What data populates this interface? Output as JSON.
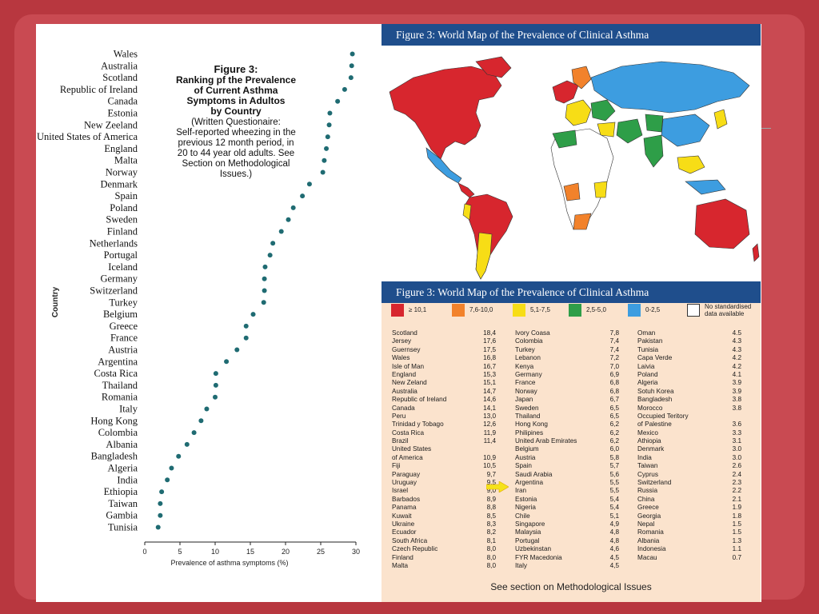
{
  "colors": {
    "background": "#b8373f",
    "dot": "#1f6b72",
    "header_bg": "#1f4e8c",
    "table_bg": "#fbe3cd",
    "arrow": "#f5e21a"
  },
  "chart_data": {
    "type": "scatter",
    "title": "Figure 3:",
    "title_lines": [
      "Ranking pf the Prevalence",
      "of Current Asthma",
      "Symptoms in Adultos",
      "by Country"
    ],
    "note_lines": [
      "(Written Questionaire:",
      "Self-reported wheezing in the",
      "previous 12 month period, in",
      "20 to 44 year old adults. See",
      "Section on Methodological",
      "Issues.)"
    ],
    "xlabel": "Prevalence of asthma symptoms (%)",
    "ylabel": "Country",
    "xlim": [
      0,
      30
    ],
    "xticks": [
      "0",
      "5",
      "10",
      "15",
      "20",
      "25",
      "30"
    ],
    "countries": [
      "Wales",
      "Australia",
      "Scotland",
      "Republic of Ireland",
      "Canada",
      "Estonia",
      "New Zeeland",
      "United States of America",
      "England",
      "Malta",
      "Norway",
      "Denmark",
      "Spain",
      "Poland",
      "Sweden",
      "Finland",
      "Netherlands",
      "Portugal",
      "Iceland",
      "Germany",
      "Switzerland",
      "Turkey",
      "Belgium",
      "Greece",
      "France",
      "Austria",
      "Argentina",
      "Costa Rica",
      "Thailand",
      "Romania",
      "Italy",
      "Hong Kong",
      "Colombia",
      "Albania",
      "Bangladesh",
      "Algeria",
      "India",
      "Ethiopia",
      "Taiwan",
      "Gambia",
      "Tunisia"
    ],
    "values": [
      29.5,
      29.4,
      29.3,
      28.4,
      27.4,
      26.3,
      26.2,
      26.0,
      25.8,
      25.5,
      25.3,
      23.4,
      22.4,
      21.1,
      20.4,
      19.4,
      18.2,
      17.8,
      17.1,
      17.0,
      17.0,
      16.9,
      15.4,
      14.4,
      14.4,
      13.1,
      11.6,
      10.1,
      10.1,
      10.0,
      8.8,
      8.0,
      7.0,
      6.0,
      4.8,
      3.8,
      3.2,
      2.4,
      2.2,
      2.2,
      1.9
    ]
  },
  "map": {
    "header": "Figure 3: World Map of the Prevalence of Clinical Asthma"
  },
  "table": {
    "header": "Figure 3: World Map of the Prevalence of Clinical Asthma",
    "legend": [
      {
        "label": "≥ 10,1",
        "color": "#d7262e"
      },
      {
        "label": "7,6-10,0",
        "color": "#f2822b"
      },
      {
        "label": "5,1-7,5",
        "color": "#f7dd16"
      },
      {
        "label": "2,5-5,0",
        "color": "#2e9e48"
      },
      {
        "label": "0-2,5",
        "color": "#3d9de0"
      },
      {
        "label": "No standardised data available",
        "color": "#ffffff",
        "line1": "No standardised",
        "line2": "data available"
      }
    ],
    "columns": [
      [
        [
          "Scotland",
          "18,4"
        ],
        [
          "Jersey",
          "17,6"
        ],
        [
          "Guernsey",
          "17,5"
        ],
        [
          "Wales",
          "16,8"
        ],
        [
          "Isle of Man",
          "16,7"
        ],
        [
          "England",
          "15,3"
        ],
        [
          "New Zeland",
          "15,1"
        ],
        [
          "Australia",
          "14,7"
        ],
        [
          "Republic of Ireland",
          "14,6"
        ],
        [
          "Canada",
          "14,1"
        ],
        [
          "Peru",
          "13,0"
        ],
        [
          "Trinidad y Tobago",
          "12,6"
        ],
        [
          "Costa Rica",
          "11,9"
        ],
        [
          "Brazil",
          "11,4"
        ],
        [
          "United States",
          ""
        ],
        [
          "of America",
          "10,9"
        ],
        [
          "Fiji",
          "10,5"
        ],
        [
          "Paraguay",
          "9,7"
        ],
        [
          "Uruguay",
          "9,5"
        ],
        [
          "Israel",
          "9,0"
        ],
        [
          "Barbados",
          "8,9"
        ],
        [
          "Panama",
          "8,8"
        ],
        [
          "Kuwait",
          "8,5"
        ],
        [
          "Ukraine",
          "8,3"
        ],
        [
          "Ecuador",
          "8,2"
        ],
        [
          "South Africa",
          "8,1"
        ],
        [
          "Czech Republic",
          "8,0"
        ],
        [
          "Finland",
          "8,0"
        ],
        [
          "Malta",
          "8,0"
        ]
      ],
      [
        [
          "Ivory Coasa",
          "7,8"
        ],
        [
          "Colombia",
          "7,4"
        ],
        [
          "Turkey",
          "7,4"
        ],
        [
          "Lebanon",
          "7,2"
        ],
        [
          "Kenya",
          "7,0"
        ],
        [
          "Germany",
          "6,9"
        ],
        [
          "France",
          "6,8"
        ],
        [
          "Norway",
          "6,8"
        ],
        [
          "Japan",
          "6,7"
        ],
        [
          "Sweden",
          "6,5"
        ],
        [
          "Thailand",
          "6,5"
        ],
        [
          "Hong Kong",
          "6,2"
        ],
        [
          "Philipines",
          "6,2"
        ],
        [
          "United Arab Emirates",
          "6,2"
        ],
        [
          "Belgium",
          "6,0"
        ],
        [
          "Austria",
          "5,8"
        ],
        [
          "Spain",
          "5,7"
        ],
        [
          "Saudi Arabia",
          "5,6"
        ],
        [
          "Argentina",
          "5,5"
        ],
        [
          "Iran",
          "5,5"
        ],
        [
          "Estonia",
          "5,4"
        ],
        [
          "Nigeria",
          "5,4"
        ],
        [
          "Chile",
          "5,1"
        ],
        [
          "Singapore",
          "4,9"
        ],
        [
          "Malaysia",
          "4,8"
        ],
        [
          "Portugal",
          "4,8"
        ],
        [
          "Uzbekinstan",
          "4,6"
        ],
        [
          "FYR Macedonia",
          "4,5"
        ],
        [
          "Italy",
          "4,5"
        ]
      ],
      [
        [
          "Oman",
          "4.5"
        ],
        [
          "Pakistan",
          "4.3"
        ],
        [
          "Tunisia",
          "4.3"
        ],
        [
          "Capa Verde",
          "4.2"
        ],
        [
          "Laivia",
          "4.2"
        ],
        [
          "Poland",
          "4.1"
        ],
        [
          "Algeria",
          "3.9"
        ],
        [
          "Sotuh Korea",
          "3.9"
        ],
        [
          "Bangladesh",
          "3.8"
        ],
        [
          "Morocco",
          "3.8"
        ],
        [
          "Occupied Teritory",
          ""
        ],
        [
          "of Palestine",
          "3.6"
        ],
        [
          "Mexico",
          "3.3"
        ],
        [
          "Athiopia",
          "3.1"
        ],
        [
          "Denmark",
          "3.0"
        ],
        [
          "India",
          "3.0"
        ],
        [
          "Taiwan",
          "2.6"
        ],
        [
          "Cyprus",
          "2.4"
        ],
        [
          "Switzerland",
          "2.3"
        ],
        [
          "Russia",
          "2.2"
        ],
        [
          "China",
          "2.1"
        ],
        [
          "Greece",
          "1.9"
        ],
        [
          "Georgia",
          "1.8"
        ],
        [
          "Nepal",
          "1.5"
        ],
        [
          "Romania",
          "1.5"
        ],
        [
          "Albania",
          "1.3"
        ],
        [
          "Indonesia",
          "1.1"
        ],
        [
          "Macau",
          "0.7"
        ]
      ]
    ],
    "footer": "See section on Methodological Issues"
  }
}
